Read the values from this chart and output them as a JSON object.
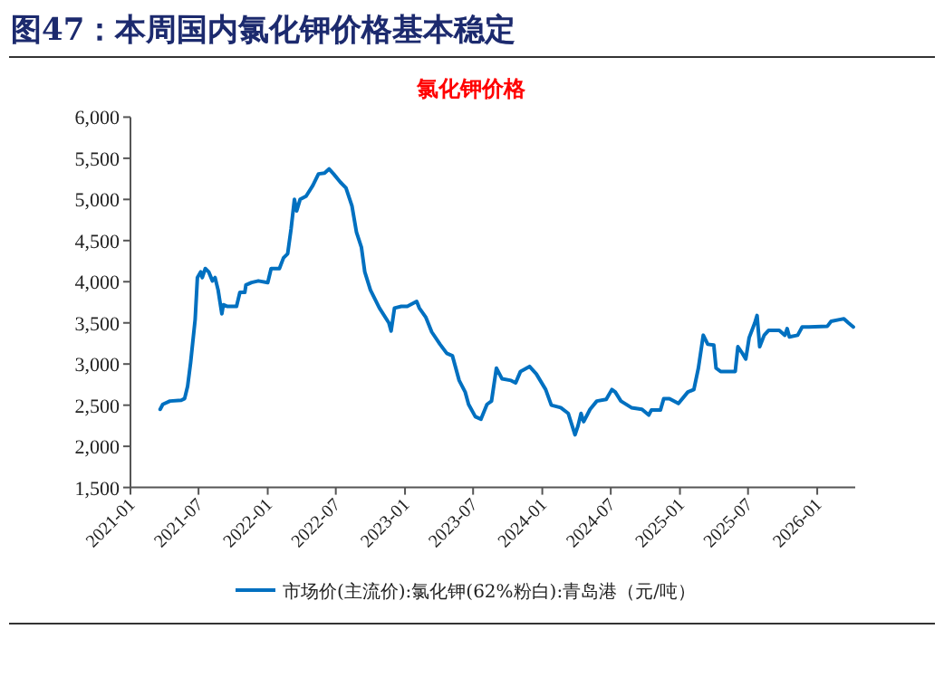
{
  "chart_data": {
    "type": "line",
    "title": "图47：本周国内氯化钾价格基本稳定",
    "subtitle": "氯化钾价格",
    "x": [
      "2021-03-21",
      "2021-03-28",
      "2021-04-16",
      "2021-05-16",
      "2021-05-25",
      "2021-06-02",
      "2021-06-10",
      "2021-06-22",
      "2021-06-28",
      "2021-07-07",
      "2021-07-11",
      "2021-07-19",
      "2021-07-28",
      "2021-08-07",
      "2021-08-14",
      "2021-08-22",
      "2021-09-01",
      "2021-09-05",
      "2021-09-16",
      "2021-10-10",
      "2021-10-19",
      "2021-11-01",
      "2021-11-04",
      "2021-11-19",
      "2021-12-07",
      "2022-01-01",
      "2022-01-10",
      "2022-02-01",
      "2022-02-12",
      "2022-02-23",
      "2022-03-04",
      "2022-03-13",
      "2022-03-19",
      "2022-03-28",
      "2022-04-13",
      "2022-05-01",
      "2022-05-16",
      "2022-06-01",
      "2022-06-13",
      "2022-06-25",
      "2022-07-13",
      "2022-07-28",
      "2022-08-13",
      "2022-08-25",
      "2022-09-07",
      "2022-09-16",
      "2022-10-01",
      "2022-10-25",
      "2022-11-19",
      "2022-11-25",
      "2022-12-04",
      "2022-12-22",
      "2023-01-07",
      "2023-02-01",
      "2023-02-08",
      "2023-02-25",
      "2023-03-13",
      "2023-04-04",
      "2023-04-22",
      "2023-05-07",
      "2023-05-25",
      "2023-06-10",
      "2023-06-19",
      "2023-07-07",
      "2023-07-22",
      "2023-08-07",
      "2023-08-19",
      "2023-09-01",
      "2023-09-16",
      "2023-10-10",
      "2023-10-22",
      "2023-11-04",
      "2023-11-28",
      "2023-12-16",
      "2024-01-10",
      "2024-01-25",
      "2024-02-19",
      "2024-03-10",
      "2024-03-28",
      "2024-04-05",
      "2024-04-13",
      "2024-04-20",
      "2024-05-07",
      "2024-05-25",
      "2024-06-19",
      "2024-07-04",
      "2024-07-13",
      "2024-07-28",
      "2024-08-25",
      "2024-09-22",
      "2024-10-10",
      "2024-10-17",
      "2024-11-10",
      "2024-11-19",
      "2024-12-04",
      "2024-12-28",
      "2025-01-22",
      "2025-02-07",
      "2025-02-19",
      "2025-03-04",
      "2025-03-16",
      "2025-04-01",
      "2025-04-07",
      "2025-04-19",
      "2025-05-28",
      "2025-06-04",
      "2025-06-16",
      "2025-06-25",
      "2025-07-04",
      "2025-07-19",
      "2025-07-25",
      "2025-08-01",
      "2025-08-13",
      "2025-08-25",
      "2025-09-22",
      "2025-10-07",
      "2025-10-13",
      "2025-10-19",
      "2025-11-10",
      "2025-11-22",
      "2025-12-10",
      "2026-01-28",
      "2026-02-07",
      "2026-03-01",
      "2026-03-13",
      "2026-03-25",
      "2026-04-07"
    ],
    "series": [
      {
        "name": "市场价(主流价):氯化钾(62%粉白):青岛港（元/吨）",
        "color": "#0070c0",
        "values": [
          2450,
          2510,
          2550,
          2560,
          2580,
          2730,
          3020,
          3540,
          4050,
          4120,
          4050,
          4160,
          4120,
          4010,
          4050,
          3900,
          3610,
          3720,
          3700,
          3700,
          3870,
          3870,
          3960,
          3990,
          4010,
          3990,
          4160,
          4160,
          4290,
          4340,
          4640,
          5000,
          4860,
          5000,
          5040,
          5170,
          5310,
          5320,
          5370,
          5310,
          5210,
          5140,
          4920,
          4600,
          4420,
          4120,
          3900,
          3680,
          3500,
          3400,
          3680,
          3700,
          3700,
          3760,
          3680,
          3570,
          3390,
          3240,
          3130,
          3100,
          2800,
          2660,
          2510,
          2360,
          2330,
          2510,
          2550,
          2950,
          2820,
          2800,
          2770,
          2910,
          2970,
          2880,
          2690,
          2500,
          2470,
          2400,
          2140,
          2250,
          2400,
          2300,
          2450,
          2550,
          2570,
          2690,
          2660,
          2550,
          2470,
          2450,
          2380,
          2440,
          2440,
          2580,
          2580,
          2520,
          2660,
          2690,
          2950,
          3350,
          3240,
          3230,
          2950,
          2910,
          2910,
          3210,
          3130,
          3060,
          3320,
          3500,
          3590,
          3210,
          3350,
          3410,
          3410,
          3350,
          3430,
          3330,
          3350,
          3450,
          3450,
          3460,
          3520,
          3540,
          3550,
          3500,
          3450
        ]
      }
    ],
    "xlim": [
      "2021-01-01",
      "2026-04-12"
    ],
    "xticks": [
      "2021-01",
      "2021-07",
      "2022-01",
      "2022-07",
      "2023-01",
      "2023-07",
      "2024-01",
      "2024-07",
      "2025-01",
      "2025-07",
      "2026-01"
    ],
    "ylim": [
      1500,
      6000
    ],
    "yticks": [
      {
        "value": 1500,
        "label": "1,500"
      },
      {
        "value": 2000,
        "label": "2,000"
      },
      {
        "value": 2500,
        "label": "2,500"
      },
      {
        "value": 3000,
        "label": "3,000"
      },
      {
        "value": 3500,
        "label": "3,500"
      },
      {
        "value": 4000,
        "label": "4,000"
      },
      {
        "value": 4500,
        "label": "4,500"
      },
      {
        "value": 5000,
        "label": "5,000"
      },
      {
        "value": 5500,
        "label": "5,500"
      },
      {
        "value": 6000,
        "label": "6,000"
      }
    ],
    "legend": "bottom"
  }
}
